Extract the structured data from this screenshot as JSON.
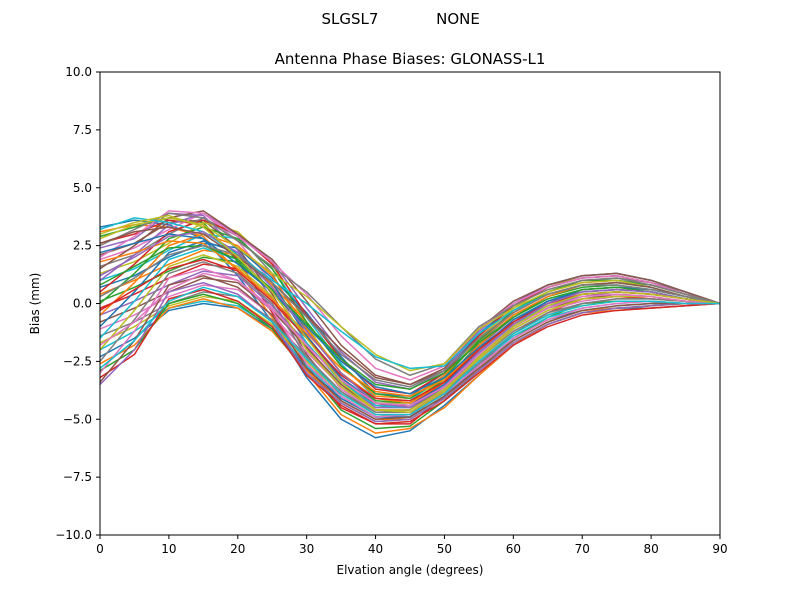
{
  "chart_data": {
    "type": "line",
    "suptitle": {
      "left": "SLGSL7",
      "right": "NONE"
    },
    "title": "Antenna Phase Biases: GLONASS-L1",
    "xlabel": "Elvation angle (degrees)",
    "ylabel": "Bias (mm)",
    "xlim": [
      0,
      90
    ],
    "ylim": [
      -10,
      10
    ],
    "xticks": [
      0,
      10,
      20,
      30,
      40,
      50,
      60,
      70,
      80,
      90
    ],
    "yticks": [
      -10.0,
      -7.5,
      -5.0,
      -2.5,
      0.0,
      2.5,
      5.0,
      7.5,
      10.0
    ],
    "xtick_labels": [
      "0",
      "10",
      "20",
      "30",
      "40",
      "50",
      "60",
      "70",
      "80",
      "90"
    ],
    "ytick_labels": [
      "−10.0",
      "−7.5",
      "−5.0",
      "−2.5",
      "0.0",
      "2.5",
      "5.0",
      "7.5",
      "10.0"
    ],
    "grid": false,
    "legend": null,
    "x": [
      0,
      5,
      10,
      15,
      20,
      25,
      30,
      35,
      40,
      45,
      50,
      55,
      60,
      65,
      70,
      75,
      80,
      85,
      90
    ],
    "colors": [
      "#1f77b4",
      "#ff7f0e",
      "#2ca02c",
      "#d62728",
      "#9467bd",
      "#8c564b",
      "#e377c2",
      "#7f7f7f",
      "#bcbd22",
      "#17becf"
    ],
    "series": [
      {
        "values": [
          3.3,
          3.6,
          3.4,
          2.8,
          1.2,
          -0.8,
          -3.2,
          -5.0,
          -5.8,
          -5.5,
          -4.4,
          -3.1,
          -1.8,
          -0.9,
          -0.4,
          -0.2,
          -0.2,
          -0.1,
          0.0
        ]
      },
      {
        "values": [
          3.1,
          3.4,
          3.3,
          2.9,
          1.4,
          -0.6,
          -3.0,
          -4.8,
          -5.6,
          -5.4,
          -4.5,
          -3.1,
          -1.8,
          -0.9,
          -0.4,
          -0.3,
          -0.2,
          -0.1,
          0.0
        ]
      },
      {
        "values": [
          2.9,
          3.3,
          3.7,
          3.5,
          1.8,
          -0.3,
          -2.8,
          -4.6,
          -5.4,
          -5.3,
          -4.2,
          -2.9,
          -1.5,
          -0.6,
          0.0,
          0.1,
          0.1,
          0.0,
          0.0
        ]
      },
      {
        "values": [
          2.6,
          3.0,
          3.6,
          3.4,
          1.9,
          -0.4,
          -2.7,
          -4.5,
          -5.2,
          -5.2,
          -4.0,
          -2.7,
          -1.3,
          -0.4,
          0.2,
          0.3,
          0.2,
          0.1,
          0.0
        ]
      },
      {
        "values": [
          2.4,
          2.8,
          3.9,
          3.8,
          2.3,
          0.2,
          -2.4,
          -4.2,
          -5.0,
          -4.9,
          -3.8,
          -2.4,
          -1.0,
          -0.2,
          0.4,
          0.5,
          0.4,
          0.2,
          0.0
        ]
      },
      {
        "values": [
          2.1,
          2.6,
          3.5,
          3.6,
          2.4,
          0.4,
          -2.2,
          -4.0,
          -4.9,
          -4.8,
          -3.7,
          -2.2,
          -0.8,
          0.0,
          0.6,
          0.7,
          0.6,
          0.3,
          0.0
        ]
      },
      {
        "values": [
          1.9,
          2.4,
          3.2,
          3.9,
          2.7,
          0.9,
          -1.8,
          -3.7,
          -4.7,
          -4.6,
          -3.5,
          -1.9,
          -0.6,
          0.3,
          0.8,
          0.9,
          0.8,
          0.4,
          0.0
        ]
      },
      {
        "values": [
          1.6,
          2.1,
          3.0,
          3.7,
          2.9,
          1.3,
          -1.4,
          -3.3,
          -4.5,
          -4.4,
          -3.4,
          -1.7,
          -0.4,
          0.5,
          1.0,
          1.1,
          0.9,
          0.5,
          0.0
        ]
      },
      {
        "values": [
          1.3,
          1.8,
          2.6,
          3.5,
          3.1,
          1.7,
          -1.0,
          -3.0,
          -4.3,
          -4.3,
          -3.2,
          -1.5,
          -0.2,
          0.7,
          1.2,
          1.3,
          1.0,
          0.5,
          0.0
        ]
      },
      {
        "values": [
          1.0,
          1.5,
          2.3,
          3.0,
          2.8,
          1.5,
          -0.6,
          -2.6,
          -4.1,
          -4.2,
          -3.1,
          -1.4,
          0.0,
          0.8,
          1.2,
          1.3,
          1.0,
          0.5,
          0.0
        ]
      },
      {
        "values": [
          0.7,
          1.2,
          2.0,
          2.6,
          2.4,
          1.1,
          -0.4,
          -2.3,
          -3.9,
          -4.0,
          -3.0,
          -1.3,
          -0.1,
          0.7,
          1.1,
          1.2,
          0.9,
          0.4,
          0.0
        ]
      },
      {
        "values": [
          0.4,
          1.0,
          1.7,
          2.3,
          2.1,
          0.8,
          -0.8,
          -2.7,
          -4.0,
          -4.1,
          -3.1,
          -1.6,
          -0.4,
          0.5,
          0.9,
          1.0,
          0.8,
          0.4,
          0.0
        ]
      },
      {
        "values": [
          0.1,
          0.7,
          1.4,
          2.0,
          1.8,
          0.5,
          -1.1,
          -3.0,
          -4.2,
          -4.3,
          -3.3,
          -1.8,
          -0.6,
          0.3,
          0.7,
          0.8,
          0.6,
          0.3,
          0.0
        ]
      },
      {
        "values": [
          -0.2,
          0.4,
          1.1,
          1.7,
          1.5,
          0.2,
          -1.4,
          -3.2,
          -4.4,
          -4.4,
          -3.4,
          -1.9,
          -0.8,
          0.1,
          0.5,
          0.6,
          0.5,
          0.2,
          0.0
        ]
      },
      {
        "values": [
          -0.5,
          0.1,
          0.8,
          1.4,
          1.2,
          -0.1,
          -1.7,
          -3.4,
          -4.5,
          -4.5,
          -3.5,
          -2.1,
          -0.9,
          -0.1,
          0.3,
          0.5,
          0.4,
          0.2,
          0.0
        ]
      },
      {
        "values": [
          -0.8,
          -0.2,
          0.5,
          1.1,
          0.9,
          -0.3,
          -1.9,
          -3.5,
          -4.6,
          -4.6,
          -3.6,
          -2.2,
          -1.0,
          -0.2,
          0.2,
          0.4,
          0.3,
          0.1,
          0.0
        ]
      },
      {
        "values": [
          -1.1,
          -0.5,
          0.3,
          0.8,
          0.6,
          -0.5,
          -2.1,
          -3.6,
          -4.7,
          -4.7,
          -3.7,
          -2.3,
          -1.1,
          -0.3,
          0.1,
          0.3,
          0.3,
          0.1,
          0.0
        ]
      },
      {
        "values": [
          -1.4,
          -0.8,
          0.0,
          0.5,
          0.3,
          -0.7,
          -2.3,
          -3.8,
          -4.8,
          -4.8,
          -3.8,
          -2.4,
          -1.2,
          -0.4,
          0.0,
          0.2,
          0.2,
          0.1,
          0.0
        ]
      },
      {
        "values": [
          -1.7,
          -1.0,
          -0.1,
          0.3,
          0.1,
          -0.9,
          -2.5,
          -3.9,
          -4.8,
          -4.8,
          -3.9,
          -2.5,
          -1.3,
          -0.5,
          -0.1,
          0.1,
          0.1,
          0.0,
          0.0
        ]
      },
      {
        "values": [
          -2.0,
          -1.2,
          -0.2,
          0.1,
          -0.1,
          -1.0,
          -2.7,
          -4.0,
          -4.9,
          -4.9,
          -4.0,
          -2.6,
          -1.4,
          -0.6,
          -0.2,
          0.0,
          0.1,
          0.0,
          0.0
        ]
      },
      {
        "values": [
          -2.3,
          -1.5,
          -0.3,
          0.0,
          -0.2,
          -1.1,
          -2.8,
          -4.1,
          -4.9,
          -4.9,
          -4.0,
          -2.7,
          -1.5,
          -0.7,
          -0.3,
          -0.1,
          0.0,
          0.0,
          0.0
        ]
      },
      {
        "values": [
          -2.6,
          -1.8,
          -0.2,
          0.2,
          -0.2,
          -1.2,
          -2.9,
          -4.2,
          -5.0,
          -5.0,
          -4.1,
          -2.8,
          -1.6,
          -0.8,
          -0.3,
          -0.2,
          -0.1,
          0.0,
          0.0
        ]
      },
      {
        "values": [
          -2.9,
          -2.0,
          0.0,
          0.4,
          0.0,
          -1.1,
          -3.0,
          -4.3,
          -5.1,
          -5.0,
          -4.1,
          -2.9,
          -1.7,
          -0.9,
          -0.4,
          -0.2,
          -0.1,
          0.0,
          0.0
        ]
      },
      {
        "values": [
          -3.2,
          -2.2,
          0.2,
          0.6,
          0.1,
          -1.0,
          -3.1,
          -4.4,
          -5.2,
          -5.1,
          -4.2,
          -3.0,
          -1.8,
          -1.0,
          -0.5,
          -0.3,
          -0.2,
          -0.1,
          0.0
        ]
      },
      {
        "values": [
          -3.5,
          -2.0,
          0.5,
          0.9,
          0.4,
          -0.8,
          -3.0,
          -4.3,
          -5.1,
          -5.0,
          -4.1,
          -2.9,
          -1.7,
          -0.9,
          -0.4,
          -0.2,
          -0.1,
          0.0,
          0.0
        ]
      },
      {
        "values": [
          -3.4,
          -1.6,
          0.8,
          1.2,
          0.7,
          -0.5,
          -2.8,
          -4.2,
          -5.0,
          -4.9,
          -4.0,
          -2.8,
          -1.6,
          -0.8,
          -0.3,
          -0.1,
          0.0,
          0.0,
          0.0
        ]
      },
      {
        "values": [
          -3.0,
          -1.2,
          1.1,
          1.5,
          1.0,
          -0.3,
          -2.6,
          -4.0,
          -4.9,
          -4.8,
          -3.9,
          -2.7,
          -1.5,
          -0.7,
          -0.2,
          0.0,
          0.1,
          0.0,
          0.0
        ]
      },
      {
        "values": [
          -2.5,
          -0.7,
          1.3,
          1.8,
          1.3,
          0.0,
          -2.3,
          -3.8,
          -4.7,
          -4.7,
          -3.8,
          -2.6,
          -1.3,
          -0.5,
          0.0,
          0.2,
          0.2,
          0.1,
          0.0
        ]
      },
      {
        "values": [
          -2.0,
          -0.3,
          1.6,
          2.1,
          1.6,
          0.3,
          -2.0,
          -3.6,
          -4.6,
          -4.6,
          -3.7,
          -2.4,
          -1.1,
          -0.3,
          0.2,
          0.3,
          0.3,
          0.1,
          0.0
        ]
      },
      {
        "values": [
          -1.5,
          0.1,
          1.9,
          2.4,
          1.9,
          0.6,
          -1.7,
          -3.4,
          -4.4,
          -4.5,
          -3.6,
          -2.2,
          -0.9,
          -0.1,
          0.4,
          0.5,
          0.4,
          0.2,
          0.0
        ]
      },
      {
        "values": [
          -1.0,
          0.5,
          2.2,
          2.7,
          2.2,
          0.9,
          -1.4,
          -3.2,
          -4.3,
          -4.4,
          -3.5,
          -2.0,
          -0.7,
          0.1,
          0.6,
          0.7,
          0.6,
          0.3,
          0.0
        ]
      },
      {
        "values": [
          -0.5,
          0.9,
          2.5,
          3.0,
          2.5,
          1.2,
          -1.1,
          -3.0,
          -4.1,
          -4.3,
          -3.4,
          -1.8,
          -0.5,
          0.3,
          0.8,
          0.9,
          0.7,
          0.3,
          0.0
        ]
      },
      {
        "values": [
          0.0,
          1.3,
          2.8,
          3.3,
          2.8,
          1.5,
          -0.8,
          -2.7,
          -3.9,
          -4.1,
          -3.2,
          -1.6,
          -0.3,
          0.5,
          1.0,
          1.0,
          0.8,
          0.4,
          0.0
        ]
      },
      {
        "values": [
          0.5,
          1.7,
          3.1,
          3.6,
          3.0,
          1.7,
          -0.5,
          -2.4,
          -3.7,
          -3.9,
          -3.0,
          -1.4,
          -0.1,
          0.7,
          1.1,
          1.2,
          0.9,
          0.4,
          0.0
        ]
      },
      {
        "values": [
          1.0,
          2.1,
          3.4,
          3.9,
          3.0,
          1.8,
          -0.2,
          -2.1,
          -3.4,
          -3.7,
          -2.9,
          -1.2,
          0.0,
          0.8,
          1.2,
          1.3,
          1.0,
          0.5,
          0.0
        ]
      },
      {
        "values": [
          1.5,
          2.5,
          3.7,
          4.0,
          3.0,
          1.9,
          0.1,
          -1.8,
          -3.1,
          -3.5,
          -2.8,
          -1.1,
          0.1,
          0.8,
          1.2,
          1.3,
          1.0,
          0.5,
          0.0
        ]
      },
      {
        "values": [
          2.0,
          2.9,
          4.0,
          3.9,
          2.9,
          1.8,
          0.4,
          -1.4,
          -2.8,
          -3.3,
          -2.7,
          -1.1,
          0.0,
          0.7,
          1.1,
          1.2,
          0.9,
          0.4,
          0.0
        ]
      },
      {
        "values": [
          2.5,
          3.2,
          3.9,
          3.7,
          2.7,
          1.6,
          0.5,
          -1.0,
          -2.4,
          -3.1,
          -2.6,
          -1.0,
          -0.1,
          0.6,
          1.0,
          1.1,
          0.8,
          0.4,
          0.0
        ]
      },
      {
        "values": [
          2.8,
          3.4,
          3.7,
          3.4,
          2.4,
          1.3,
          0.3,
          -1.0,
          -2.2,
          -2.9,
          -2.6,
          -1.1,
          -0.2,
          0.5,
          0.9,
          1.0,
          0.7,
          0.3,
          0.0
        ]
      },
      {
        "values": [
          3.2,
          3.7,
          3.5,
          3.1,
          2.1,
          1.0,
          0.0,
          -1.2,
          -2.3,
          -2.8,
          -2.7,
          -1.3,
          -0.3,
          0.4,
          0.8,
          0.9,
          0.7,
          0.3,
          0.0
        ]
      },
      {
        "values": [
          2.2,
          2.6,
          3.0,
          2.8,
          1.7,
          0.5,
          -1.0,
          -2.5,
          -3.6,
          -3.9,
          -3.2,
          -1.9,
          -0.8,
          0.1,
          0.5,
          0.6,
          0.5,
          0.2,
          0.0
        ]
      },
      {
        "values": [
          1.8,
          2.2,
          2.7,
          2.6,
          1.5,
          0.2,
          -1.3,
          -2.8,
          -3.8,
          -4.0,
          -3.3,
          -2.0,
          -0.9,
          0.0,
          0.4,
          0.5,
          0.4,
          0.2,
          0.0
        ]
      },
      {
        "values": [
          0.8,
          1.6,
          2.4,
          2.5,
          1.9,
          0.6,
          -0.9,
          -2.4,
          -3.5,
          -3.7,
          -3.0,
          -1.7,
          -0.6,
          0.2,
          0.6,
          0.7,
          0.5,
          0.2,
          0.0
        ]
      },
      {
        "values": [
          -0.3,
          0.6,
          1.5,
          1.9,
          1.4,
          0.1,
          -1.5,
          -3.1,
          -4.1,
          -4.2,
          -3.4,
          -2.0,
          -0.8,
          0.0,
          0.4,
          0.5,
          0.4,
          0.2,
          0.0
        ]
      },
      {
        "values": [
          1.2,
          2.0,
          2.9,
          3.1,
          2.2,
          0.7,
          -1.2,
          -3.0,
          -4.3,
          -4.5,
          -3.6,
          -2.1,
          -0.9,
          0.0,
          0.5,
          0.6,
          0.5,
          0.2,
          0.0
        ]
      },
      {
        "values": [
          2.6,
          3.1,
          3.3,
          3.0,
          2.0,
          0.9,
          -0.5,
          -2.0,
          -3.2,
          -3.5,
          -2.9,
          -1.5,
          -0.4,
          0.4,
          0.8,
          0.9,
          0.7,
          0.3,
          0.0
        ]
      },
      {
        "values": [
          -1.8,
          -0.8,
          0.6,
          1.3,
          1.0,
          -0.2,
          -1.8,
          -3.3,
          -4.3,
          -4.4,
          -3.6,
          -2.2,
          -1.0,
          -0.2,
          0.3,
          0.4,
          0.3,
          0.1,
          0.0
        ]
      },
      {
        "values": [
          0.3,
          1.1,
          2.1,
          2.5,
          2.1,
          0.9,
          -0.6,
          -2.2,
          -3.3,
          -3.6,
          -2.9,
          -1.5,
          -0.4,
          0.4,
          0.8,
          0.8,
          0.6,
          0.3,
          0.0
        ]
      },
      {
        "values": [
          3.0,
          3.5,
          3.8,
          3.3,
          2.0,
          0.5,
          -1.5,
          -3.4,
          -4.6,
          -4.7,
          -3.8,
          -2.3,
          -1.0,
          -0.1,
          0.4,
          0.5,
          0.4,
          0.2,
          0.0
        ]
      },
      {
        "values": [
          -2.8,
          -1.6,
          0.1,
          0.7,
          0.3,
          -0.8,
          -2.4,
          -3.9,
          -4.8,
          -4.8,
          -3.9,
          -2.5,
          -1.3,
          -0.5,
          -0.1,
          0.1,
          0.1,
          0.0,
          0.0
        ]
      }
    ]
  }
}
